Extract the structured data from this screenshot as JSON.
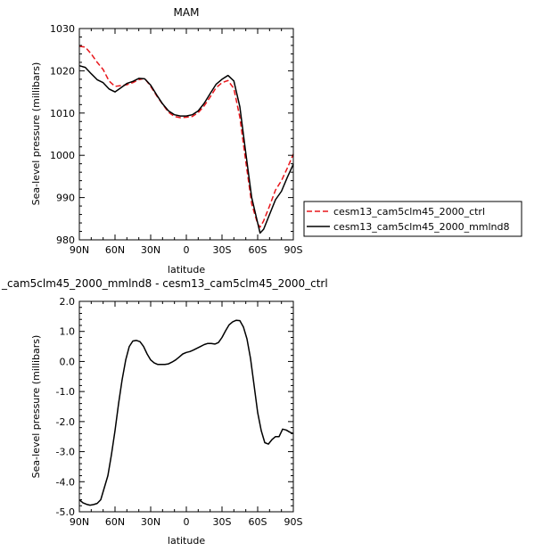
{
  "chart_data": [
    {
      "type": "line",
      "title": "MAM",
      "xlabel": "latitude",
      "ylabel": "Sea-level pressure (millibars)",
      "xlim": [
        90,
        -90
      ],
      "ylim": [
        980,
        1030
      ],
      "x_ticks": [
        90,
        60,
        30,
        0,
        -30,
        -60,
        -90
      ],
      "x_tick_labels": [
        "90N",
        "60N",
        "30N",
        "0",
        "30S",
        "60S",
        "90S"
      ],
      "y_ticks": [
        980,
        990,
        1000,
        1010,
        1020,
        1030
      ],
      "y_tick_labels": [
        "980",
        "990",
        "1000",
        "1010",
        "1020",
        "1030"
      ],
      "legend": {
        "placement": "outside-right"
      },
      "series": [
        {
          "name": "cesm13_cam5clm45_2000_ctrl",
          "color": "#e8161b",
          "style": "dashed",
          "x": [
            90,
            85,
            80,
            75,
            70,
            65,
            60,
            55,
            50,
            45,
            40,
            35,
            30,
            25,
            20,
            15,
            10,
            5,
            0,
            -5,
            -10,
            -15,
            -20,
            -25,
            -30,
            -35,
            -40,
            -45,
            -50,
            -55,
            -60,
            -62,
            -65,
            -70,
            -75,
            -80,
            -85,
            -90
          ],
          "y": [
            1025.8,
            1025.6,
            1024,
            1022,
            1020.3,
            1017.6,
            1016.3,
            1016.5,
            1016.7,
            1017.2,
            1017.9,
            1018.2,
            1016.3,
            1014.1,
            1012.1,
            1010.2,
            1009.2,
            1008.9,
            1009.0,
            1009.2,
            1010.1,
            1011.7,
            1013.8,
            1016.0,
            1017.2,
            1017.7,
            1015.8,
            1009.0,
            998.5,
            988.5,
            983.8,
            983.0,
            984.5,
            988.0,
            991.8,
            994.0,
            997.0,
            1000.3
          ]
        },
        {
          "name": "cesm13_cam5clm45_2000_mmlnd8",
          "color": "#000000",
          "style": "solid",
          "x": [
            90,
            85,
            80,
            75,
            70,
            65,
            60,
            55,
            50,
            45,
            40,
            35,
            30,
            25,
            20,
            15,
            10,
            5,
            0,
            -5,
            -10,
            -15,
            -20,
            -25,
            -30,
            -35,
            -40,
            -45,
            -50,
            -55,
            -60,
            -62,
            -65,
            -70,
            -75,
            -80,
            -85,
            -90
          ],
          "y": [
            1021.2,
            1020.8,
            1019.3,
            1017.9,
            1017.2,
            1015.7,
            1015.0,
            1016.0,
            1017.0,
            1017.5,
            1018.2,
            1018.1,
            1016.6,
            1014.3,
            1012.2,
            1010.5,
            1009.6,
            1009.3,
            1009.3,
            1009.6,
            1010.5,
            1012.3,
            1014.6,
            1016.8,
            1018.0,
            1018.9,
            1017.6,
            1011.5,
            1000.5,
            990.0,
            984.0,
            981.6,
            982.5,
            986.0,
            989.5,
            991.5,
            994.8,
            997.9
          ]
        }
      ]
    },
    {
      "type": "line",
      "title": "_cam5clm45_2000_mmlnd8 - cesm13_cam5clm45_2000_ctrl",
      "xlabel": "latitude",
      "ylabel": "Sea-level pressure (millibars)",
      "xlim": [
        90,
        -90
      ],
      "ylim": [
        -5.0,
        2.0
      ],
      "x_ticks": [
        90,
        60,
        30,
        0,
        -30,
        -60,
        -90
      ],
      "x_tick_labels": [
        "90N",
        "60N",
        "30N",
        "0",
        "30S",
        "60S",
        "90S"
      ],
      "y_ticks": [
        -5,
        -4,
        -3,
        -2,
        -1,
        0,
        1,
        2
      ],
      "y_tick_labels": [
        "-5.0",
        "-4.0",
        "-3.0",
        "-2.0",
        "-1.0",
        "0.0",
        "1.0",
        "2.0"
      ],
      "series": [
        {
          "color": "#000000",
          "style": "solid",
          "x": [
            90,
            87,
            84,
            81,
            78,
            75,
            72,
            69,
            66,
            63,
            60,
            57,
            54,
            51,
            48,
            45,
            42,
            39,
            36,
            33,
            30,
            27,
            24,
            21,
            18,
            15,
            12,
            9,
            6,
            3,
            0,
            -3,
            -6,
            -9,
            -12,
            -15,
            -18,
            -21,
            -24,
            -27,
            -30,
            -33,
            -36,
            -39,
            -42,
            -45,
            -48,
            -51,
            -54,
            -57,
            -60,
            -63,
            -66,
            -69,
            -72,
            -75,
            -78,
            -81,
            -84,
            -87,
            -90
          ],
          "y": [
            -4.6,
            -4.7,
            -4.75,
            -4.78,
            -4.76,
            -4.72,
            -4.6,
            -4.2,
            -3.8,
            -3.1,
            -2.3,
            -1.4,
            -0.6,
            0.05,
            0.5,
            0.68,
            0.7,
            0.66,
            0.5,
            0.25,
            0.05,
            -0.05,
            -0.1,
            -0.1,
            -0.1,
            -0.08,
            -0.02,
            0.05,
            0.15,
            0.25,
            0.3,
            0.33,
            0.38,
            0.44,
            0.5,
            0.56,
            0.6,
            0.6,
            0.58,
            0.63,
            0.8,
            1.02,
            1.22,
            1.32,
            1.37,
            1.36,
            1.15,
            0.75,
            0.1,
            -0.8,
            -1.7,
            -2.3,
            -2.7,
            -2.75,
            -2.6,
            -2.5,
            -2.5,
            -2.25,
            -2.28,
            -2.35,
            -2.4
          ]
        }
      ]
    }
  ]
}
